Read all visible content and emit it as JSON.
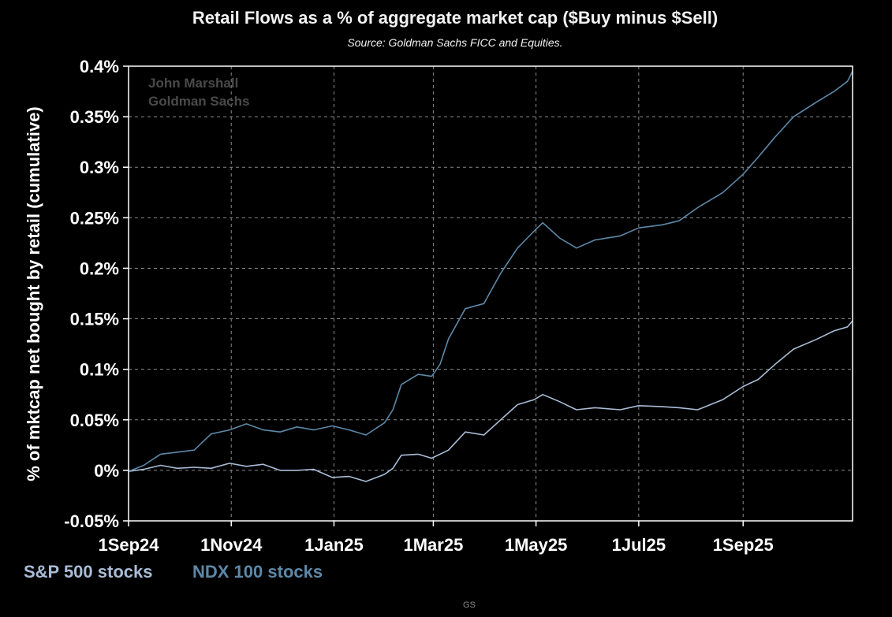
{
  "chart_data": {
    "type": "line",
    "title": "Retail Flows as a % of aggregate market cap ($Buy minus $Sell)",
    "subtitle": "Source: Goldman Sachs FICC and Equities.",
    "ylabel": "% of mktcap net bought by retail (cumulative)",
    "xlabel": "",
    "watermark": [
      "John Marshall",
      "Goldman Sachs"
    ],
    "footer": "GS",
    "ylim": [
      -0.05,
      0.4
    ],
    "y_ticks": [
      {
        "value": -0.05,
        "label": "-0.05%"
      },
      {
        "value": 0,
        "label": "0%"
      },
      {
        "value": 0.05,
        "label": "0.05%"
      },
      {
        "value": 0.1,
        "label": "0.1%"
      },
      {
        "value": 0.15,
        "label": "0.15%"
      },
      {
        "value": 0.2,
        "label": "0.2%"
      },
      {
        "value": 0.25,
        "label": "0.25%"
      },
      {
        "value": 0.3,
        "label": "0.3%"
      },
      {
        "value": 0.35,
        "label": "0.35%"
      },
      {
        "value": 0.4,
        "label": "0.4%"
      }
    ],
    "xlim": [
      "2024-09-01",
      "2025-11-05"
    ],
    "x_ticks": [
      {
        "value": "2024-09-01",
        "label": "1Sep24"
      },
      {
        "value": "2024-11-01",
        "label": "1Nov24"
      },
      {
        "value": "2025-01-01",
        "label": "1Jan25"
      },
      {
        "value": "2025-03-01",
        "label": "1Mar25"
      },
      {
        "value": "2025-05-01",
        "label": "1May25"
      },
      {
        "value": "2025-07-01",
        "label": "1Jul25"
      },
      {
        "value": "2025-09-01",
        "label": "1Sep25"
      }
    ],
    "grid": true,
    "legend_position": "bottom-left",
    "series": [
      {
        "name": "S&P 500 stocks",
        "color": "#a9bcd6",
        "points": [
          [
            "2024-09-01",
            -0.001
          ],
          [
            "2024-09-10",
            0.001
          ],
          [
            "2024-09-20",
            0.005
          ],
          [
            "2024-09-30",
            0.002
          ],
          [
            "2024-10-10",
            0.003
          ],
          [
            "2024-10-20",
            0.002
          ],
          [
            "2024-10-31",
            0.007
          ],
          [
            "2024-11-10",
            0.004
          ],
          [
            "2024-11-20",
            0.006
          ],
          [
            "2024-11-30",
            0.0
          ],
          [
            "2024-12-10",
            0.0
          ],
          [
            "2024-12-20",
            0.001
          ],
          [
            "2024-12-31",
            -0.007
          ],
          [
            "2025-01-10",
            -0.006
          ],
          [
            "2025-01-20",
            -0.011
          ],
          [
            "2025-01-31",
            -0.004
          ],
          [
            "2025-02-05",
            0.002
          ],
          [
            "2025-02-10",
            0.015
          ],
          [
            "2025-02-20",
            0.016
          ],
          [
            "2025-02-28",
            0.012
          ],
          [
            "2025-03-10",
            0.02
          ],
          [
            "2025-03-20",
            0.038
          ],
          [
            "2025-03-31",
            0.035
          ],
          [
            "2025-04-10",
            0.05
          ],
          [
            "2025-04-20",
            0.065
          ],
          [
            "2025-04-30",
            0.07
          ],
          [
            "2025-05-05",
            0.075
          ],
          [
            "2025-05-15",
            0.068
          ],
          [
            "2025-05-25",
            0.06
          ],
          [
            "2025-06-05",
            0.062
          ],
          [
            "2025-06-20",
            0.06
          ],
          [
            "2025-07-01",
            0.064
          ],
          [
            "2025-07-15",
            0.063
          ],
          [
            "2025-07-25",
            0.062
          ],
          [
            "2025-08-05",
            0.06
          ],
          [
            "2025-08-20",
            0.07
          ],
          [
            "2025-09-01",
            0.083
          ],
          [
            "2025-09-10",
            0.09
          ],
          [
            "2025-09-20",
            0.105
          ],
          [
            "2025-10-01",
            0.12
          ],
          [
            "2025-10-15",
            0.13
          ],
          [
            "2025-10-25",
            0.138
          ],
          [
            "2025-11-02",
            0.142
          ],
          [
            "2025-11-05",
            0.148
          ]
        ]
      },
      {
        "name": "NDX 100 stocks",
        "color": "#5d88a8",
        "points": [
          [
            "2024-09-01",
            -0.001
          ],
          [
            "2024-09-10",
            0.005
          ],
          [
            "2024-09-20",
            0.016
          ],
          [
            "2024-09-30",
            0.018
          ],
          [
            "2024-10-10",
            0.02
          ],
          [
            "2024-10-20",
            0.036
          ],
          [
            "2024-10-31",
            0.04
          ],
          [
            "2024-11-10",
            0.046
          ],
          [
            "2024-11-20",
            0.04
          ],
          [
            "2024-11-30",
            0.038
          ],
          [
            "2024-12-10",
            0.043
          ],
          [
            "2024-12-20",
            0.04
          ],
          [
            "2024-12-31",
            0.044
          ],
          [
            "2025-01-10",
            0.04
          ],
          [
            "2025-01-20",
            0.035
          ],
          [
            "2025-01-31",
            0.047
          ],
          [
            "2025-02-05",
            0.06
          ],
          [
            "2025-02-10",
            0.085
          ],
          [
            "2025-02-20",
            0.095
          ],
          [
            "2025-02-28",
            0.093
          ],
          [
            "2025-03-05",
            0.105
          ],
          [
            "2025-03-10",
            0.13
          ],
          [
            "2025-03-20",
            0.16
          ],
          [
            "2025-03-31",
            0.165
          ],
          [
            "2025-04-10",
            0.195
          ],
          [
            "2025-04-20",
            0.22
          ],
          [
            "2025-04-30",
            0.237
          ],
          [
            "2025-05-05",
            0.245
          ],
          [
            "2025-05-15",
            0.23
          ],
          [
            "2025-05-25",
            0.22
          ],
          [
            "2025-06-05",
            0.228
          ],
          [
            "2025-06-20",
            0.232
          ],
          [
            "2025-07-01",
            0.24
          ],
          [
            "2025-07-15",
            0.243
          ],
          [
            "2025-07-25",
            0.247
          ],
          [
            "2025-08-05",
            0.26
          ],
          [
            "2025-08-20",
            0.275
          ],
          [
            "2025-09-01",
            0.293
          ],
          [
            "2025-09-10",
            0.31
          ],
          [
            "2025-09-20",
            0.33
          ],
          [
            "2025-10-01",
            0.35
          ],
          [
            "2025-10-15",
            0.365
          ],
          [
            "2025-10-25",
            0.375
          ],
          [
            "2025-11-02",
            0.385
          ],
          [
            "2025-11-05",
            0.395
          ]
        ]
      }
    ]
  }
}
